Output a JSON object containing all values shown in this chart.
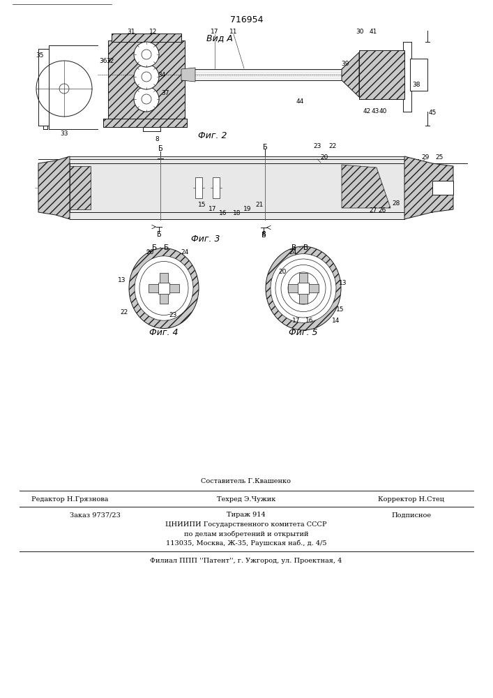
{
  "patent_number": "716954",
  "background_color": "#ffffff",
  "line_color": "#1a1a1a",
  "fig2_label": "Вид А",
  "fig2_caption": "Фиг. 2",
  "fig3_caption": "Фиг. 3",
  "fig4_caption": "Фиг. 4",
  "fig5_caption": "Фиг. 5",
  "footer_top_left": "Составитель Г.Квашенко",
  "footer_line1_left": "Редактор Н.Грязнова",
  "footer_line1_mid": "Техред Э.Чужик",
  "footer_line1_right": "Корректор Н.Стец",
  "footer_line2_left": "Заказ 9737/23",
  "footer_line2_mid": "Тираж 914",
  "footer_line2_right": "Подписное",
  "footer_line3": "ЦНИИПИ Государственного комитета СССР",
  "footer_line4": "по делам изобретений и открытий",
  "footer_line5": "113035, Москва, Ж-35, Раушская наб., д. 4/5",
  "footer_line6": "Филиал ППП ''Патент'', г. Ужгород, ул. Проектная, 4",
  "gray_fill": "#c8c8c8",
  "dark_fill": "#888888",
  "white_fill": "#ffffff"
}
